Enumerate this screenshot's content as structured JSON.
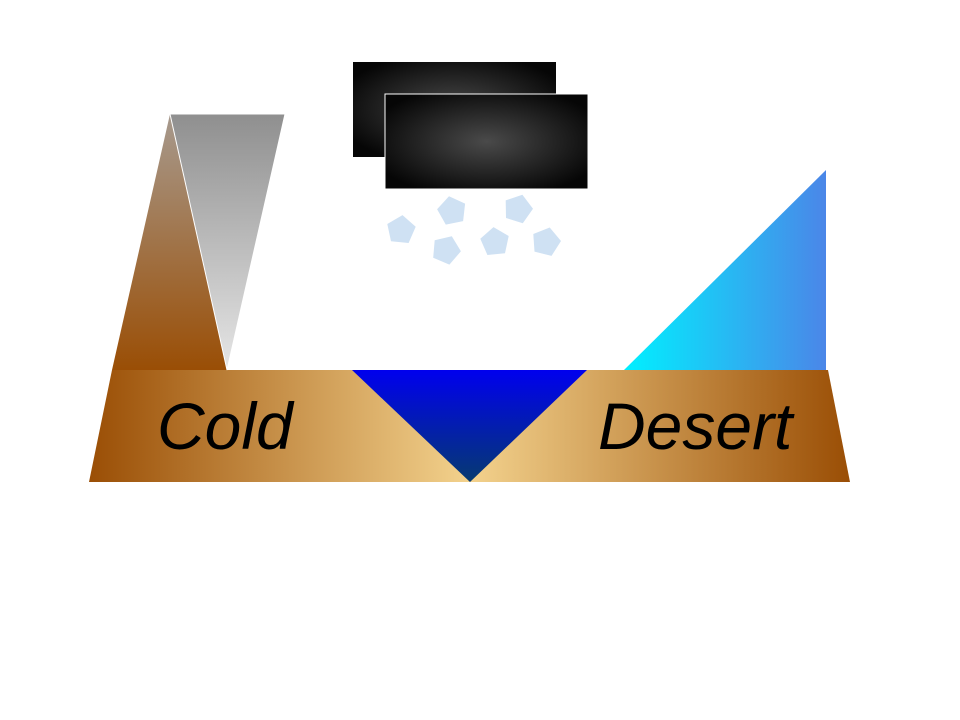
{
  "labels": {
    "left": "Cold",
    "right": "Desert"
  },
  "icons": [
    "mountain-peak-icon",
    "dark-cloud-icon",
    "snowflake-icon",
    "glacier-icon",
    "water-basin-icon"
  ],
  "colors": {
    "ground_edge": "#9a4e05",
    "ground_center": "#f3d28d",
    "mountain_brown": "#9a4e05",
    "mountain_grey": "#8f8f8f",
    "mountain_light": "#e6e6e6",
    "cloud_dark": "#060606",
    "cloud_light": "#4a4a4a",
    "snow": "#cfe1f3",
    "basin_top": "#0000ee",
    "basin_bottom": "#063a70",
    "glacier_left": "#00f0ff",
    "glacier_right": "#4b86e8"
  }
}
